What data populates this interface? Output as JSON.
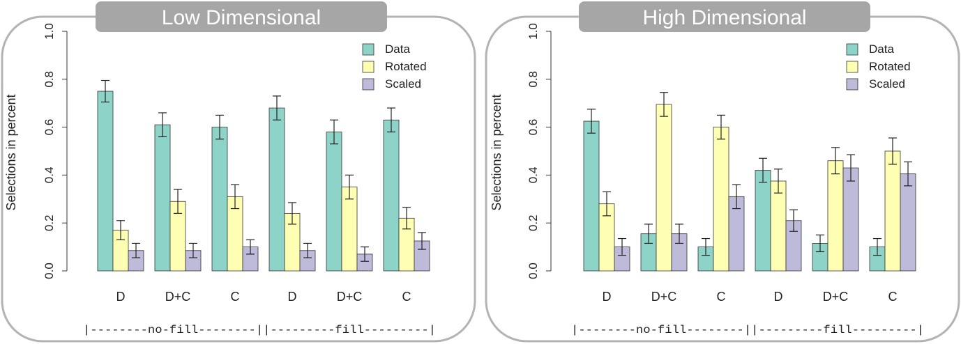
{
  "chart_data": [
    {
      "type": "bar",
      "title": "Low Dimensional",
      "ylabel": "Selections in percent",
      "ylim": [
        0,
        1.0
      ],
      "yticks": [
        "0.0",
        "0.2",
        "0.4",
        "0.6",
        "0.8",
        "1.0"
      ],
      "categories": [
        "D",
        "D+C",
        "C",
        "D",
        "D+C",
        "C"
      ],
      "group_labels": [
        "|--------no-fill--------||---------fill---------|"
      ],
      "legend_position": "top-right",
      "series": [
        {
          "name": "Data",
          "color": "#8dd3c7",
          "values": [
            0.75,
            0.61,
            0.6,
            0.68,
            0.58,
            0.63
          ],
          "errors": [
            0.045,
            0.05,
            0.05,
            0.05,
            0.05,
            0.05
          ]
        },
        {
          "name": "Rotated",
          "color": "#ffffb3",
          "values": [
            0.17,
            0.29,
            0.31,
            0.24,
            0.35,
            0.22
          ],
          "errors": [
            0.04,
            0.05,
            0.05,
            0.045,
            0.05,
            0.045
          ]
        },
        {
          "name": "Scaled",
          "color": "#bebada",
          "values": [
            0.085,
            0.085,
            0.1,
            0.085,
            0.07,
            0.125
          ],
          "errors": [
            0.03,
            0.03,
            0.03,
            0.03,
            0.03,
            0.035
          ]
        }
      ]
    },
    {
      "type": "bar",
      "title": "High Dimensional",
      "ylabel": "Selections in percent",
      "ylim": [
        0,
        1.0
      ],
      "yticks": [
        "0.0",
        "0.2",
        "0.4",
        "0.6",
        "0.8",
        "1.0"
      ],
      "categories": [
        "D",
        "D+C",
        "C",
        "D",
        "D+C",
        "C"
      ],
      "group_labels": [
        "|--------no-fill--------||---------fill---------|"
      ],
      "legend_position": "top-right",
      "series": [
        {
          "name": "Data",
          "color": "#8dd3c7",
          "values": [
            0.625,
            0.155,
            0.1,
            0.42,
            0.115,
            0.1
          ],
          "errors": [
            0.05,
            0.04,
            0.035,
            0.05,
            0.035,
            0.035
          ]
        },
        {
          "name": "Rotated",
          "color": "#ffffb3",
          "values": [
            0.28,
            0.695,
            0.6,
            0.375,
            0.46,
            0.5
          ],
          "errors": [
            0.05,
            0.05,
            0.05,
            0.05,
            0.055,
            0.055
          ]
        },
        {
          "name": "Scaled",
          "color": "#bebada",
          "values": [
            0.1,
            0.155,
            0.31,
            0.21,
            0.43,
            0.405
          ],
          "errors": [
            0.035,
            0.04,
            0.05,
            0.045,
            0.055,
            0.05
          ]
        }
      ]
    }
  ]
}
